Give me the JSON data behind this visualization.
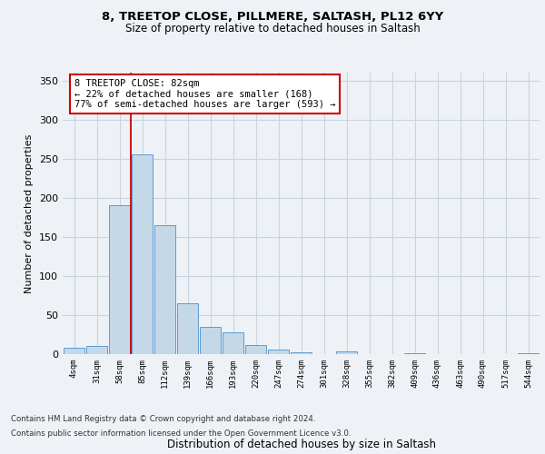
{
  "title_line1": "8, TREETOP CLOSE, PILLMERE, SALTASH, PL12 6YY",
  "title_line2": "Size of property relative to detached houses in Saltash",
  "xlabel": "Distribution of detached houses by size in Saltash",
  "ylabel": "Number of detached properties",
  "bin_labels": [
    "4sqm",
    "31sqm",
    "58sqm",
    "85sqm",
    "112sqm",
    "139sqm",
    "166sqm",
    "193sqm",
    "220sqm",
    "247sqm",
    "274sqm",
    "301sqm",
    "328sqm",
    "355sqm",
    "382sqm",
    "409sqm",
    "436sqm",
    "463sqm",
    "490sqm",
    "517sqm",
    "544sqm"
  ],
  "bar_heights": [
    8,
    11,
    191,
    256,
    165,
    65,
    35,
    28,
    12,
    6,
    2,
    0,
    4,
    0,
    0,
    1,
    0,
    0,
    0,
    0,
    1
  ],
  "bar_color": "#c5d8e8",
  "bar_edge_color": "#5b9bd5",
  "property_bin_index": 3,
  "annotation_text": "8 TREETOP CLOSE: 82sqm\n← 22% of detached houses are smaller (168)\n77% of semi-detached houses are larger (593) →",
  "annotation_box_color": "#ffffff",
  "annotation_box_edge": "#cc0000",
  "vline_color": "#cc0000",
  "ylim": [
    0,
    360
  ],
  "yticks": [
    0,
    50,
    100,
    150,
    200,
    250,
    300,
    350
  ],
  "footer_line1": "Contains HM Land Registry data © Crown copyright and database right 2024.",
  "footer_line2": "Contains public sector information licensed under the Open Government Licence v3.0.",
  "bg_color": "#eef2f7",
  "grid_color": "#c8d4e0"
}
